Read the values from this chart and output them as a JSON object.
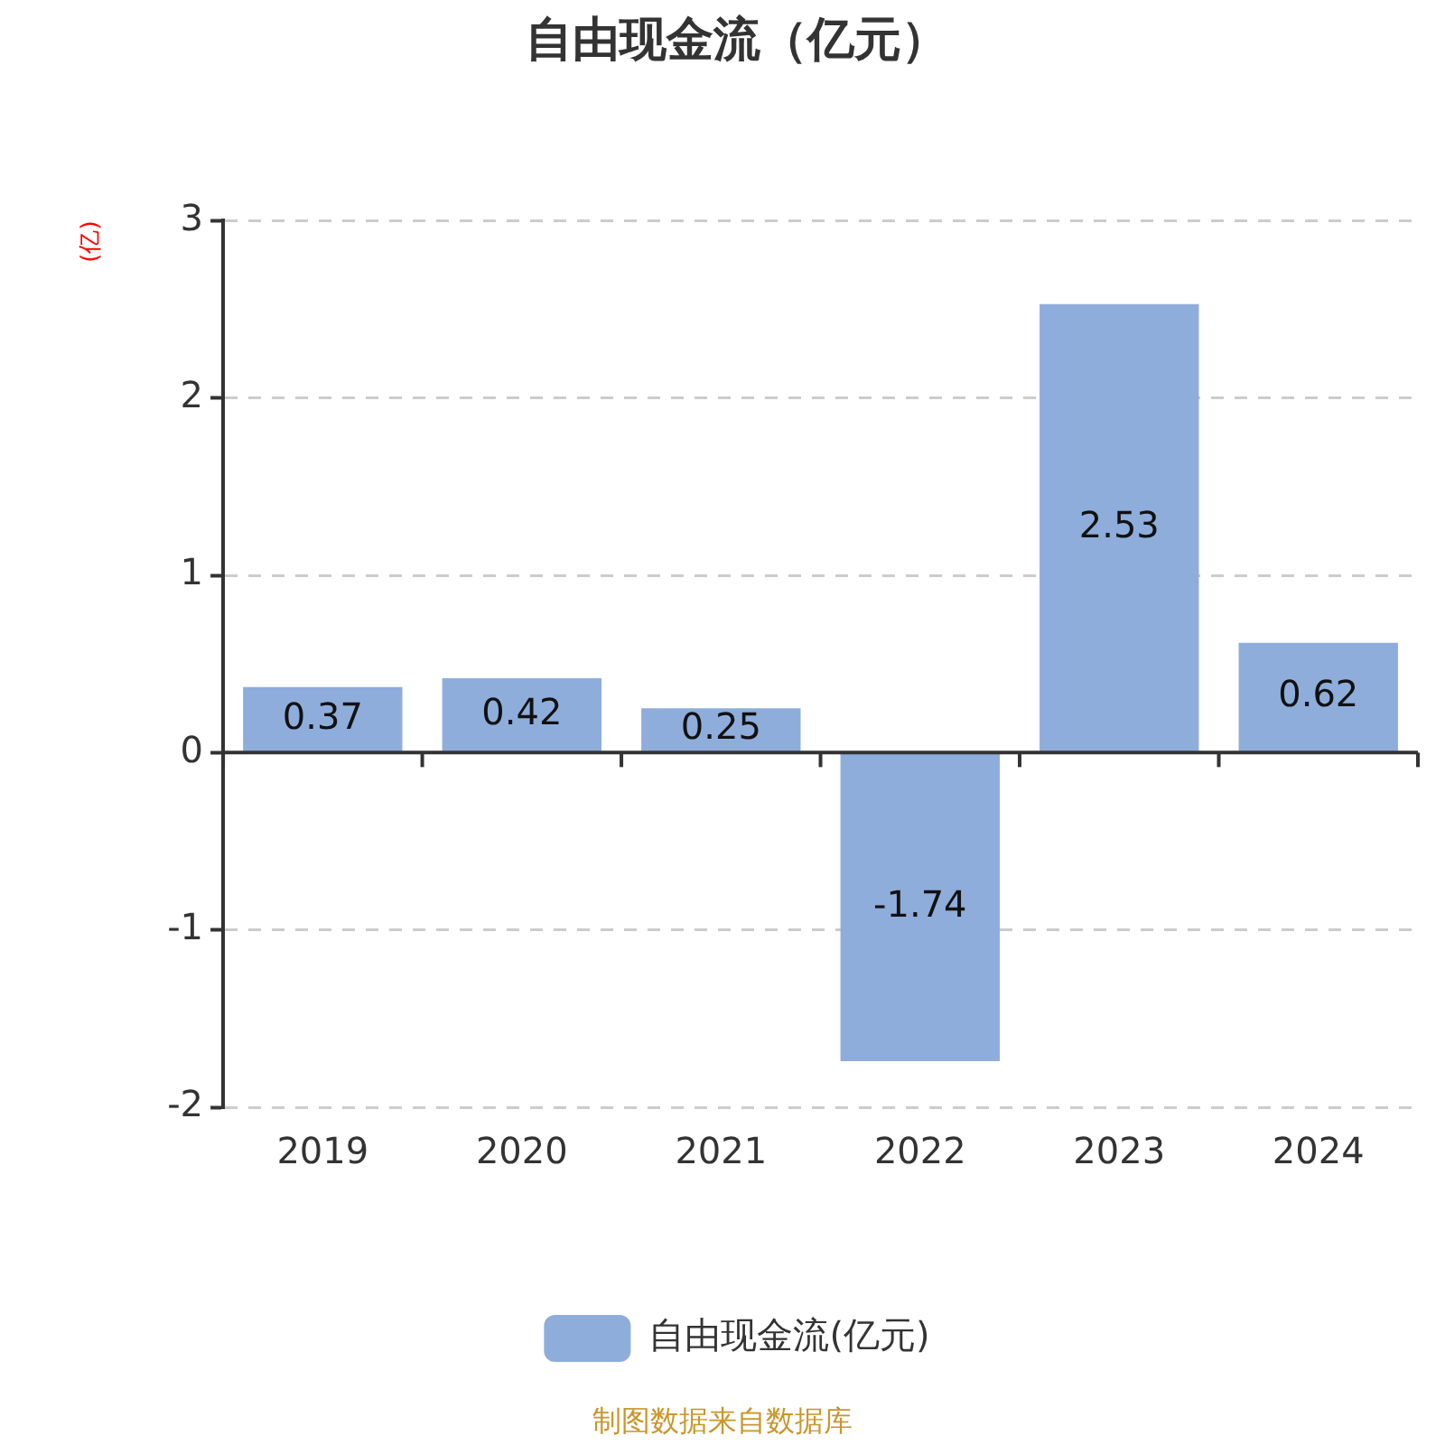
{
  "chart_data": {
    "type": "bar",
    "title": "自由现金流（亿元）",
    "ylabel": "(亿)",
    "categories": [
      "2019",
      "2020",
      "2021",
      "2022",
      "2023",
      "2024"
    ],
    "series": [
      {
        "name": "自由现金流(亿元)",
        "color": "#8eaddb",
        "values": [
          0.37,
          0.42,
          0.25,
          -1.74,
          2.53,
          0.62
        ]
      }
    ],
    "ylim": [
      -2,
      3
    ],
    "yticks": [
      -2,
      -1,
      0,
      1,
      2,
      3
    ],
    "grid": "y",
    "legend": "bottom",
    "data_labels": true,
    "annotations": [
      "制图数据来自数据库"
    ]
  }
}
